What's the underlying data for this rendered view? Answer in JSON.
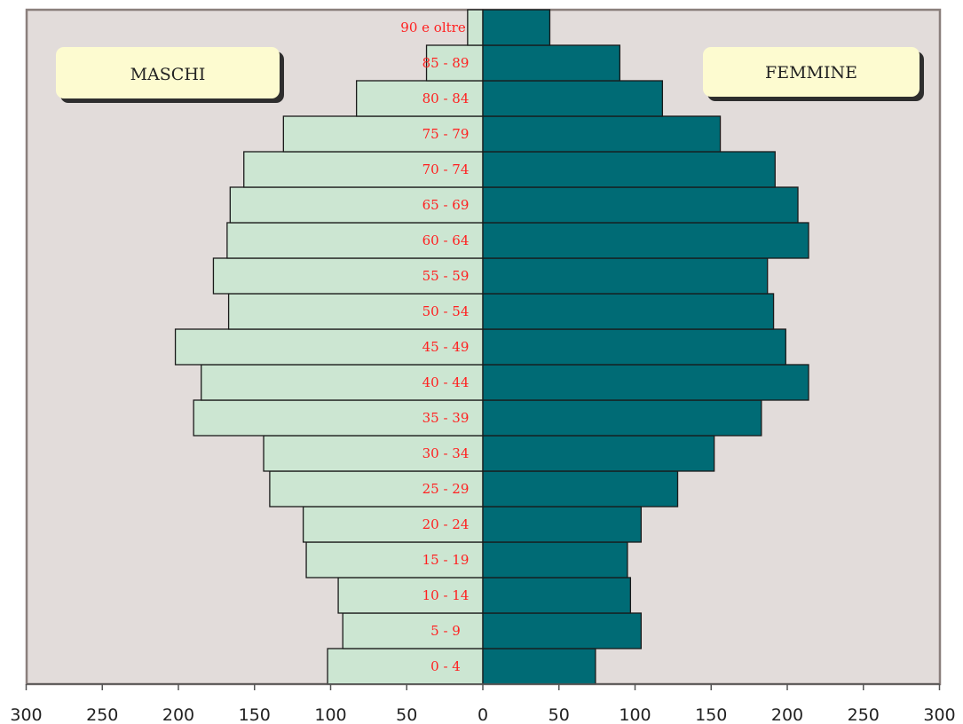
{
  "chart_data": {
    "type": "bar",
    "orientation": "horizontal",
    "subtype": "population-pyramid",
    "categories": [
      "0 - 4",
      "5 - 9",
      "10 - 14",
      "15 - 19",
      "20 - 24",
      "25 - 29",
      "30 - 34",
      "35 - 39",
      "40 - 44",
      "45 - 49",
      "50 - 54",
      "55 - 59",
      "60 - 64",
      "65 - 69",
      "70 - 74",
      "75 - 79",
      "80 - 84",
      "85 - 89",
      "90 e oltre"
    ],
    "series": [
      {
        "name": "MASCHI",
        "side": "left",
        "color": "#cce6d2",
        "values": [
          102,
          92,
          95,
          116,
          118,
          140,
          144,
          190,
          185,
          202,
          167,
          177,
          168,
          166,
          157,
          131,
          83,
          37,
          10
        ]
      },
      {
        "name": "FEMMINE",
        "side": "right",
        "color": "#006b75",
        "values": [
          74,
          104,
          97,
          95,
          104,
          128,
          152,
          183,
          214,
          199,
          191,
          187,
          214,
          207,
          192,
          156,
          118,
          90,
          44
        ]
      }
    ],
    "xlim": [
      -300,
      300
    ],
    "x_ticks": [
      -300,
      -250,
      -200,
      -150,
      -100,
      -50,
      0,
      50,
      100,
      150,
      200,
      250,
      300
    ],
    "x_tick_labels": [
      "300",
      "250",
      "200",
      "150",
      "100",
      "50",
      "0",
      "50",
      "100",
      "150",
      "200",
      "250",
      "300"
    ],
    "grid": false,
    "plot_background": "#e2dcda",
    "label_color": "#ff2020"
  }
}
